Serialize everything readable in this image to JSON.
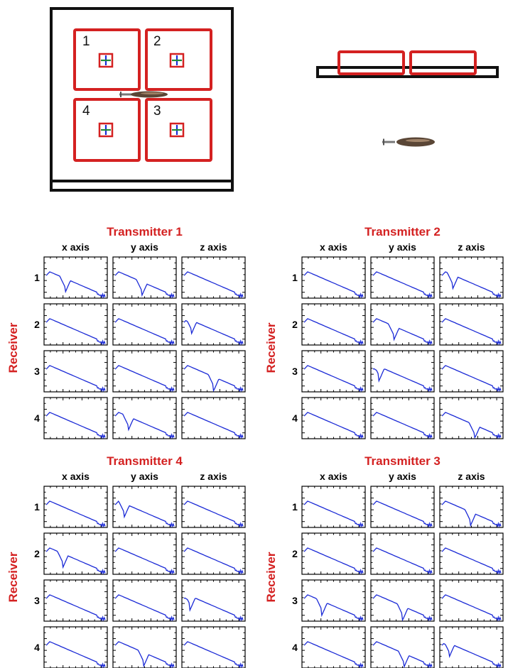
{
  "setup": {
    "coils": [
      "1",
      "2",
      "3",
      "4"
    ]
  },
  "axis_headers": [
    "x axis",
    "y axis",
    "z axis"
  ],
  "receiver_label": "Receiver",
  "receivers": [
    "1",
    "2",
    "3",
    "4"
  ],
  "panels": [
    {
      "title": "Transmitter 1",
      "curves": [
        [
          {
            "dip": 0.32
          },
          {
            "dip": 0.45
          },
          {
            "dip": null
          }
        ],
        [
          {
            "dip": null
          },
          {
            "dip": null
          },
          {
            "dip": 0.12
          }
        ],
        [
          {
            "dip": null
          },
          {
            "dip": null
          },
          {
            "dip": 0.5
          }
        ],
        [
          {
            "dip": null
          },
          {
            "dip": 0.22
          },
          {
            "dip": null
          }
        ]
      ]
    },
    {
      "title": "Transmitter 2",
      "curves": [
        [
          {
            "dip": null
          },
          {
            "dip": null
          },
          {
            "dip": 0.18
          }
        ],
        [
          {
            "dip": null
          },
          {
            "dip": 0.35
          },
          {
            "dip": null
          }
        ],
        [
          {
            "dip": null
          },
          {
            "dip": 0.1
          },
          {
            "dip": null
          }
        ],
        [
          {
            "dip": null
          },
          {
            "dip": null
          },
          {
            "dip": 0.55
          }
        ]
      ]
    },
    {
      "title": "Transmitter 4",
      "curves": [
        [
          {
            "dip": null
          },
          {
            "dip": 0.15
          },
          {
            "dip": null
          }
        ],
        [
          {
            "dip": 0.28
          },
          {
            "dip": null
          },
          {
            "dip": null
          }
        ],
        [
          {
            "dip": null
          },
          {
            "dip": null
          },
          {
            "dip": 0.1
          }
        ],
        [
          {
            "dip": null
          },
          {
            "dip": 0.48
          },
          {
            "dip": null
          }
        ]
      ]
    },
    {
      "title": "Transmitter 3",
      "curves": [
        [
          {
            "dip": null
          },
          {
            "dip": null
          },
          {
            "dip": 0.48
          }
        ],
        [
          {
            "dip": null
          },
          {
            "dip": null
          },
          {
            "dip": null
          }
        ],
        [
          {
            "dip": 0.3
          },
          {
            "dip": 0.5
          },
          {
            "dip": null
          }
        ],
        [
          {
            "dip": null
          },
          {
            "dip": 0.52
          },
          {
            "dip": 0.12
          }
        ]
      ]
    }
  ]
}
